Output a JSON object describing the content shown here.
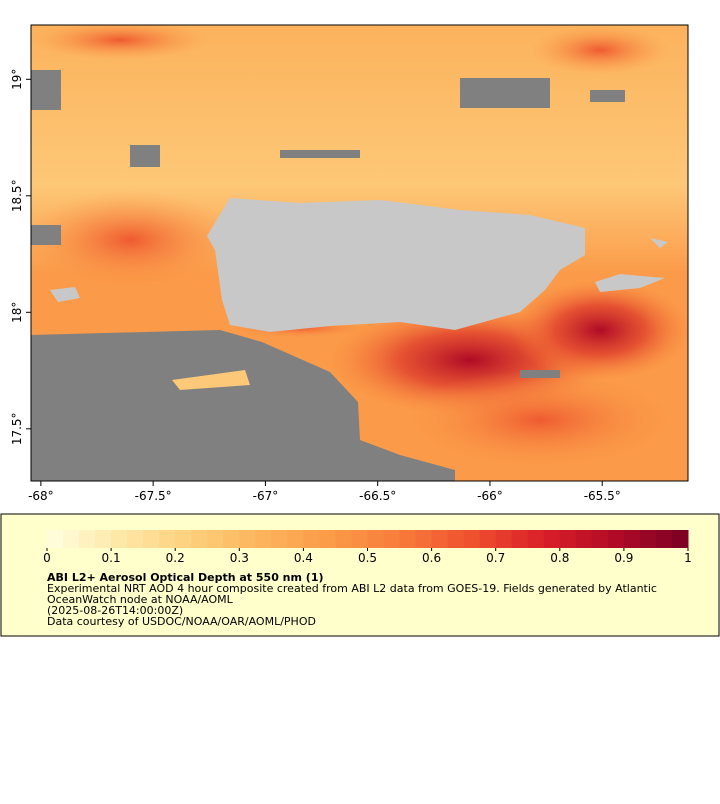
{
  "map": {
    "xlim": [
      -68.044,
      -65.118
    ],
    "ylim": [
      17.276,
      19.233
    ],
    "xticks": [
      {
        "value": -68,
        "label": "-68°"
      },
      {
        "value": -67.5,
        "label": "-67.5°"
      },
      {
        "value": -67,
        "label": "-67°"
      },
      {
        "value": -66.5,
        "label": "-66.5°"
      },
      {
        "value": -66,
        "label": "-66°"
      },
      {
        "value": -65.5,
        "label": "-65.5°"
      }
    ],
    "yticks": [
      {
        "value": 17.5,
        "label": "17.5°"
      },
      {
        "value": 18,
        "label": "18°"
      },
      {
        "value": 18.5,
        "label": "18.5°"
      },
      {
        "value": 19,
        "label": "19°"
      }
    ]
  },
  "colorbar": {
    "lim": [
      0,
      1
    ],
    "ticks": [
      0,
      0.1,
      0.2,
      0.3,
      0.4,
      0.5,
      0.6,
      0.7,
      0.8,
      0.9,
      1
    ],
    "steps": 40,
    "colormap": [
      "#ffffe0",
      "#fee8a8",
      "#fdd07c",
      "#fcb45c",
      "#fb9a48",
      "#f87a3a",
      "#ef4e2e",
      "#d81e28",
      "#b00a26",
      "#7a0024"
    ]
  },
  "legend": {
    "title": "ABI L2+ Aerosol Optical Depth at 550 nm (1)",
    "lines": [
      "Experimental NRT AOD 4 hour composite created from ABI L2 data from GOES-19. Fields generated by Atlantic",
      "OceanWatch node at NOAA/AOML",
      "(2025-08-26T14:00:00Z)",
      "Data courtesy of USDOC/NOAA/OAR/AOML/PHOD"
    ]
  }
}
